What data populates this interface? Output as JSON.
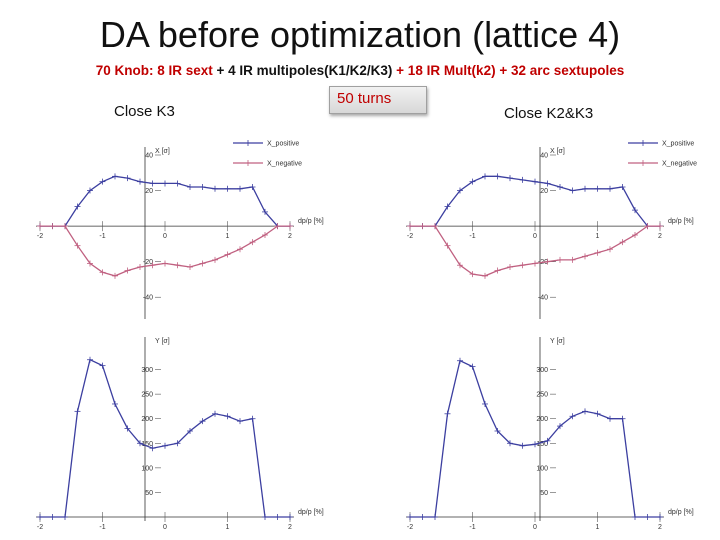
{
  "title": "DA before optimization (lattice 4)",
  "subtitle": {
    "p1": "70 Knob: 8 IR sext",
    "p2": " + 4 IR multipoles(K1/K2/K3) ",
    "p3": "+ 18 IR Mult(k2)",
    "p4": " + 32 arc sextupoles"
  },
  "labels": {
    "left": "Close K3",
    "right": "Close K2&K3",
    "turns": "50 turns"
  },
  "colors": {
    "accent": "#c00000",
    "positive": "#3c3fa0",
    "negative": "#c06080"
  },
  "chart_data": [
    {
      "type": "line",
      "id": "x-left",
      "legend": [
        "X_positive",
        "X_negative"
      ],
      "xlabel": "dp/p [%]",
      "ylabel": "X [σ]",
      "xlim": [
        -2,
        2
      ],
      "ylim": [
        -50,
        40
      ],
      "xticks": [
        -2,
        -1,
        0,
        1,
        2
      ],
      "yticks": [
        40,
        20,
        -20,
        -40
      ],
      "x": [
        -2,
        -1.8,
        -1.6,
        -1.4,
        -1.2,
        -1,
        -0.8,
        -0.6,
        -0.4,
        -0.2,
        0,
        0.2,
        0.4,
        0.6,
        0.8,
        1,
        1.2,
        1.4,
        1.6,
        1.8,
        2
      ],
      "series": [
        {
          "name": "X_positive",
          "values": [
            0,
            0,
            0,
            11,
            20,
            25,
            28,
            27,
            25,
            24,
            24,
            24,
            22,
            22,
            21,
            21,
            21,
            22,
            8,
            0,
            0
          ]
        },
        {
          "name": "X_negative",
          "values": [
            0,
            0,
            0,
            -11,
            -21,
            -26,
            -28,
            -25,
            -23,
            -22,
            -21,
            -22,
            -23,
            -21,
            -19,
            -16,
            -13,
            -9,
            -5,
            0,
            0
          ]
        }
      ]
    },
    {
      "type": "line",
      "id": "x-right",
      "legend": [
        "X_positive",
        "X_negative"
      ],
      "xlabel": "dp/p [%]",
      "ylabel": "X [σ]",
      "xlim": [
        -2,
        2
      ],
      "ylim": [
        -50,
        40
      ],
      "xticks": [
        -2,
        -1,
        0,
        1,
        2
      ],
      "yticks": [
        40,
        20,
        -20,
        -40
      ],
      "x": [
        -2,
        -1.8,
        -1.6,
        -1.4,
        -1.2,
        -1,
        -0.8,
        -0.6,
        -0.4,
        -0.2,
        0,
        0.2,
        0.4,
        0.6,
        0.8,
        1,
        1.2,
        1.4,
        1.6,
        1.8,
        2
      ],
      "series": [
        {
          "name": "X_positive",
          "values": [
            0,
            0,
            0,
            11,
            20,
            25,
            28,
            28,
            27,
            26,
            25,
            24,
            22,
            20,
            21,
            21,
            21,
            22,
            9,
            0,
            0
          ]
        },
        {
          "name": "X_negative",
          "values": [
            0,
            0,
            0,
            -11,
            -22,
            -27,
            -28,
            -25,
            -23,
            -22,
            -21,
            -20,
            -19,
            -19,
            -17,
            -15,
            -13,
            -9,
            -5,
            0,
            0
          ]
        }
      ]
    },
    {
      "type": "line",
      "id": "y-left",
      "legend": [],
      "xlabel": "dp/p [%]",
      "ylabel": "Y [σ]",
      "xlim": [
        -2,
        2
      ],
      "ylim": [
        0,
        350
      ],
      "xticks": [
        -2,
        -1,
        0,
        1,
        2
      ],
      "yticks": [
        50,
        100,
        150,
        200,
        250,
        300
      ],
      "x": [
        -2,
        -1.8,
        -1.6,
        -1.4,
        -1.2,
        -1,
        -0.8,
        -0.6,
        -0.4,
        -0.2,
        0,
        0.2,
        0.4,
        0.6,
        0.8,
        1,
        1.2,
        1.4,
        1.6,
        1.8,
        2
      ],
      "series": [
        {
          "name": "Y",
          "values": [
            0,
            0,
            0,
            215,
            320,
            308,
            230,
            180,
            150,
            140,
            145,
            150,
            175,
            195,
            210,
            205,
            195,
            200,
            0,
            0,
            0
          ]
        }
      ]
    },
    {
      "type": "line",
      "id": "y-right",
      "legend": [],
      "xlabel": "dp/p [%]",
      "ylabel": "Y [σ]",
      "xlim": [
        -2,
        2
      ],
      "ylim": [
        0,
        350
      ],
      "xticks": [
        -2,
        -1,
        0,
        1,
        2
      ],
      "yticks": [
        50,
        100,
        150,
        200,
        250,
        300
      ],
      "x": [
        -2,
        -1.8,
        -1.6,
        -1.4,
        -1.2,
        -1,
        -0.8,
        -0.6,
        -0.4,
        -0.2,
        0,
        0.2,
        0.4,
        0.6,
        0.8,
        1,
        1.2,
        1.4,
        1.6,
        1.8,
        2
      ],
      "series": [
        {
          "name": "Y",
          "values": [
            0,
            0,
            0,
            210,
            318,
            306,
            230,
            175,
            150,
            145,
            148,
            155,
            185,
            205,
            215,
            210,
            200,
            200,
            0,
            0,
            0
          ]
        }
      ]
    }
  ]
}
